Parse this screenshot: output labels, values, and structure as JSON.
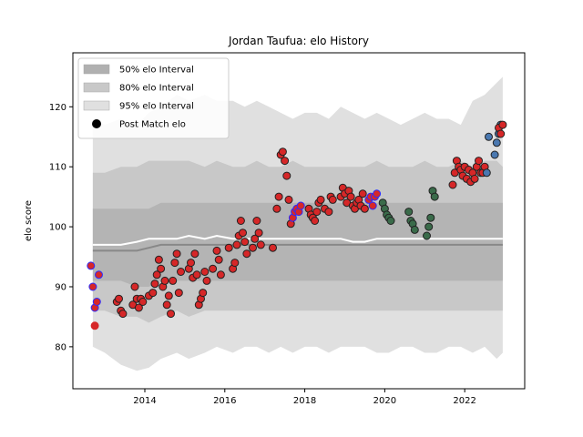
{
  "chart_data": {
    "type": "scatter",
    "title": "Jordan Taufua: elo History",
    "xlabel": "",
    "ylabel": "elo score",
    "xlim": [
      2012.2,
      2023.5
    ],
    "ylim": [
      73,
      129
    ],
    "x_ticks": [
      2014,
      2016,
      2018,
      2020,
      2022
    ],
    "y_ticks": [
      80,
      90,
      100,
      110,
      120
    ],
    "legend_position": "top-left",
    "legend": [
      {
        "label": "50% elo Interval",
        "kind": "patch",
        "color": "#b0b0b0"
      },
      {
        "label": "80% elo Interval",
        "kind": "patch",
        "color": "#c8c8c8"
      },
      {
        "label": "95% elo Interval",
        "kind": "patch",
        "color": "#e0e0e0"
      },
      {
        "label": "Post Match elo",
        "kind": "marker",
        "color": "#000000"
      }
    ],
    "colors": {
      "band95": "#e0e0e0",
      "band80": "#c8c8c8",
      "band50": "#b4b4b4",
      "median": "#888888",
      "mean": "#ffffff",
      "point_red": "#d62728",
      "point_blue": "#4a78b0",
      "point_green": "#3a6b4a",
      "edge_dark": "#222222",
      "edge_blue": "#2b2bff",
      "edge_red": "#d62728"
    },
    "interval_bands": {
      "x": [
        2012.7,
        2013.0,
        2013.4,
        2013.8,
        2014.1,
        2014.4,
        2014.8,
        2015.1,
        2015.5,
        2015.8,
        2016.2,
        2016.5,
        2016.8,
        2017.1,
        2017.4,
        2017.7,
        2018.0,
        2018.3,
        2018.6,
        2018.9,
        2019.2,
        2019.5,
        2019.8,
        2020.1,
        2020.4,
        2020.7,
        2021.0,
        2021.3,
        2021.6,
        2021.9,
        2022.2,
        2022.5,
        2022.8,
        2022.95
      ],
      "p95_low": [
        80,
        79,
        77,
        76,
        76.5,
        78,
        79,
        78,
        79,
        80,
        79,
        80,
        80,
        79,
        80,
        79,
        80,
        80,
        79,
        80,
        80,
        80,
        79,
        79,
        80,
        80,
        79,
        79,
        80,
        80,
        79,
        80,
        78,
        79
      ],
      "p80_low": [
        86,
        86,
        85,
        85,
        84,
        85,
        86,
        85,
        86,
        86,
        86,
        86,
        86,
        86,
        86,
        86,
        86,
        86,
        86,
        86,
        86,
        86,
        86,
        86,
        86,
        86,
        86,
        86,
        86,
        86,
        86,
        86,
        86,
        86
      ],
      "p50_low": [
        91,
        91,
        91,
        90,
        90,
        91,
        91,
        91,
        91,
        91,
        91,
        91,
        91,
        91,
        91,
        91,
        91,
        91,
        91,
        91,
        91,
        91,
        91,
        91,
        91,
        91,
        91,
        91,
        91,
        91,
        91,
        91,
        91,
        91
      ],
      "median": [
        96,
        96,
        96,
        96,
        96.5,
        97,
        97,
        97,
        97,
        97,
        97,
        97,
        97,
        97,
        97,
        97,
        97,
        97,
        97,
        97,
        97,
        97,
        97,
        97,
        97,
        97,
        97,
        97,
        97,
        97,
        97,
        97,
        97,
        97
      ],
      "mean": [
        97,
        97,
        97,
        97.5,
        98,
        98,
        98,
        98.5,
        98,
        98.5,
        98,
        98,
        98,
        98,
        98,
        98,
        98,
        98,
        98,
        98,
        97.5,
        97.5,
        98,
        98,
        98,
        98,
        98,
        98,
        98,
        98,
        98,
        98,
        98,
        98
      ],
      "p50_high": [
        103,
        103,
        103,
        103,
        103,
        104,
        104,
        104,
        104,
        104,
        104,
        104,
        104,
        104,
        104,
        104,
        104,
        104,
        104,
        104,
        104,
        104,
        104,
        104,
        104,
        104,
        104,
        104,
        104,
        104,
        104,
        104,
        104,
        104
      ],
      "p80_high": [
        109,
        109,
        110,
        110,
        111,
        111,
        111,
        111,
        110,
        111,
        110,
        110,
        111,
        110,
        110,
        111,
        110,
        110,
        110,
        110,
        110,
        110,
        111,
        110,
        110,
        110,
        111,
        110,
        110,
        111,
        110,
        111,
        111,
        110
      ],
      "p95_high": [
        118,
        117,
        118,
        117,
        119,
        120,
        122,
        121,
        122,
        121,
        121,
        120,
        121,
        120,
        119,
        118,
        119,
        119,
        118,
        120,
        119,
        118,
        119,
        118,
        117,
        118,
        119,
        118,
        118,
        117,
        121,
        122,
        124,
        125
      ]
    },
    "series": [
      {
        "color": "red",
        "edge": "blue",
        "x": [
          2012.65,
          2012.7,
          2012.75,
          2012.8,
          2012.85
        ],
        "y": [
          93.5,
          90,
          86.5,
          87.5,
          92
        ]
      },
      {
        "color": "red",
        "edge": "red",
        "x": [
          2012.75
        ],
        "y": [
          83.5
        ]
      },
      {
        "color": "red",
        "edge": "dark",
        "x": [
          2013.3,
          2013.35,
          2013.4,
          2013.45,
          2013.7,
          2013.75,
          2013.8,
          2013.85,
          2013.9,
          2013.95,
          2014.1,
          2014.2,
          2014.25,
          2014.3,
          2014.35,
          2014.4,
          2014.45,
          2014.5,
          2014.55,
          2014.6,
          2014.65,
          2014.7,
          2014.75,
          2014.8,
          2014.85,
          2014.9,
          2015.1,
          2015.15,
          2015.2,
          2015.25,
          2015.3,
          2015.35,
          2015.4,
          2015.45,
          2015.5,
          2015.55,
          2015.7,
          2015.8,
          2015.85,
          2015.9,
          2016.1,
          2016.2,
          2016.25,
          2016.3,
          2016.35,
          2016.4,
          2016.45,
          2016.5,
          2016.55,
          2016.7,
          2016.75,
          2016.8,
          2016.85,
          2016.9,
          2017.2,
          2017.3,
          2017.35,
          2017.4,
          2017.45,
          2017.5,
          2017.55,
          2017.6,
          2017.65
        ],
        "y": [
          87.5,
          88,
          86,
          85.5,
          87,
          90,
          88,
          86.5,
          88,
          87.5,
          88.5,
          89,
          90.5,
          92,
          94.5,
          93,
          90,
          91,
          87,
          88.5,
          85.5,
          91,
          94,
          95.5,
          89,
          92.5,
          93,
          94,
          91.5,
          95.5,
          92,
          87,
          88,
          89,
          92.5,
          91,
          93,
          96,
          94.5,
          92,
          96.5,
          93,
          94,
          97,
          98.5,
          101,
          99,
          97.5,
          95.5,
          96.5,
          98,
          101,
          99,
          97,
          96.5,
          103,
          105,
          112,
          112.5,
          111,
          108.5,
          104.5,
          100.5
        ]
      },
      {
        "color": "red",
        "edge": "blue",
        "x": [
          2017.7,
          2017.75,
          2017.8,
          2017.85,
          2017.9
        ],
        "y": [
          101.5,
          102.5,
          103,
          102.5,
          103.5
        ]
      },
      {
        "color": "red",
        "edge": "dark",
        "x": [
          2018.1,
          2018.15,
          2018.2,
          2018.25,
          2018.3,
          2018.35,
          2018.4,
          2018.5,
          2018.6,
          2018.65,
          2018.7,
          2018.9,
          2018.95,
          2019.0,
          2019.05,
          2019.1,
          2019.15,
          2019.2,
          2019.25,
          2019.3,
          2019.35,
          2019.4,
          2019.45,
          2019.5
        ],
        "y": [
          103,
          102,
          101.5,
          101,
          102.5,
          104,
          104.5,
          103,
          102.5,
          105,
          104.5,
          105,
          106.5,
          105.5,
          104,
          106,
          105,
          103.5,
          103,
          104,
          104.5,
          103.5,
          105.5,
          103
        ]
      },
      {
        "color": "red",
        "edge": "blue",
        "x": [
          2019.6,
          2019.65,
          2019.7,
          2019.75,
          2019.8
        ],
        "y": [
          104.5,
          105,
          103.5,
          105,
          105.5
        ]
      },
      {
        "color": "green",
        "edge": "dark",
        "x": [
          2019.95,
          2020.0,
          2020.05,
          2020.1,
          2020.15,
          2020.6,
          2020.65,
          2020.7,
          2020.75,
          2021.05,
          2021.1,
          2021.15,
          2021.2,
          2021.25
        ],
        "y": [
          104,
          103,
          102,
          101.5,
          101,
          102.5,
          101,
          100.5,
          99.5,
          98.5,
          100,
          101.5,
          106,
          105
        ]
      },
      {
        "color": "red",
        "edge": "dark",
        "x": [
          2021.7,
          2021.75,
          2021.8,
          2021.85,
          2021.9,
          2021.95,
          2022.0,
          2022.05,
          2022.1,
          2022.15,
          2022.2,
          2022.25,
          2022.3,
          2022.35,
          2022.4,
          2022.45,
          2022.5
        ],
        "y": [
          107,
          109,
          111,
          110,
          109.5,
          108.5,
          110,
          108,
          109.5,
          107.5,
          109,
          108,
          110,
          111,
          109,
          109,
          110
        ]
      },
      {
        "color": "blue",
        "edge": "dark",
        "x": [
          2022.55,
          2022.6,
          2022.75,
          2022.8,
          2022.85,
          2022.9
        ],
        "y": [
          109,
          115,
          112,
          114,
          115.5,
          117
        ]
      },
      {
        "color": "red",
        "edge": "dark",
        "x": [
          2022.85,
          2022.9,
          2022.95
        ],
        "y": [
          116.5,
          115.5,
          117
        ]
      }
    ]
  }
}
